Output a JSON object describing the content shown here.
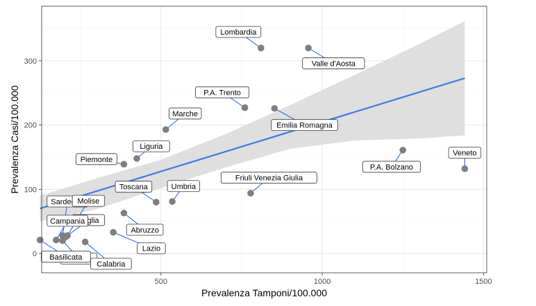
{
  "chart_data": {
    "type": "scatter",
    "xlabel": "Prevalenza Tamponi/100.000",
    "ylabel": "Prevalenza Casi/100.000",
    "xlim": [
      130,
      1510
    ],
    "ylim": [
      -30,
      385
    ],
    "x_ticks": [
      500,
      1000,
      1500
    ],
    "y_ticks": [
      0,
      100,
      200,
      300
    ],
    "x_minor_ticks": [
      250,
      750,
      1250
    ],
    "y_minor_ticks": [
      50,
      150,
      250,
      350
    ],
    "grid": true,
    "colors": {
      "point": "#7f7f7f",
      "fit_line": "#3d7ae8",
      "band": "#d9d9d9",
      "leader": "#2f6fd6",
      "grid_major": "#e6e6e6",
      "grid_minor": "#f2f2f2",
      "axis": "#333333"
    },
    "points": [
      {
        "name": "Lombardia",
        "x": 810,
        "y": 320,
        "lx": 740,
        "ly": 345
      },
      {
        "name": "Valle d'Aosta",
        "x": 957,
        "y": 320,
        "lx": 1035,
        "ly": 296
      },
      {
        "name": "P.A. Trento",
        "x": 760,
        "y": 227,
        "lx": 690,
        "ly": 251
      },
      {
        "name": "Emilia Romagna",
        "x": 852,
        "y": 226,
        "lx": 945,
        "ly": 200
      },
      {
        "name": "Marche",
        "x": 515,
        "y": 193,
        "lx": 575,
        "ly": 218
      },
      {
        "name": "Liguria",
        "x": 425,
        "y": 148,
        "lx": 470,
        "ly": 167
      },
      {
        "name": "Piemonte",
        "x": 385,
        "y": 139,
        "lx": 300,
        "ly": 147
      },
      {
        "name": "P.A. Bolzano",
        "x": 1250,
        "y": 161,
        "lx": 1215,
        "ly": 135
      },
      {
        "name": "Veneto",
        "x": 1442,
        "y": 132,
        "lx": 1442,
        "ly": 157
      },
      {
        "name": "Friuli Venezia Giulia",
        "x": 778,
        "y": 94,
        "lx": 835,
        "ly": 118
      },
      {
        "name": "Toscana",
        "x": 485,
        "y": 80,
        "lx": 415,
        "ly": 104
      },
      {
        "name": "Umbria",
        "x": 535,
        "y": 81,
        "lx": 570,
        "ly": 105
      },
      {
        "name": "Abruzzo",
        "x": 385,
        "y": 63,
        "lx": 450,
        "ly": 37
      },
      {
        "name": "Lazio",
        "x": 352,
        "y": 33,
        "lx": 470,
        "ly": 8
      },
      {
        "name": "Sardegna",
        "x": 195,
        "y": 28,
        "lx": 210,
        "ly": 81
      },
      {
        "name": "Molise",
        "x": 210,
        "y": 28,
        "lx": 275,
        "ly": 82
      },
      {
        "name": "Puglia",
        "x": 205,
        "y": 26,
        "lx": 275,
        "ly": 52
      },
      {
        "name": "Campania",
        "x": 175,
        "y": 21,
        "lx": 210,
        "ly": 51
      },
      {
        "name": "Sicilia",
        "x": 195,
        "y": 20,
        "lx": 245,
        "ly": -8
      },
      {
        "name": "Calabria",
        "x": 265,
        "y": 18,
        "lx": 345,
        "ly": -16
      },
      {
        "name": "Basilicata",
        "x": 125,
        "y": 21,
        "lx": 205,
        "ly": -5
      }
    ],
    "fit_line": {
      "x": [
        125,
        1442
      ],
      "y": [
        70,
        273
      ]
    },
    "confidence_band": {
      "x": [
        125,
        300,
        500,
        700,
        900,
        1100,
        1300,
        1442
      ],
      "upper": [
        90,
        117,
        146,
        186,
        231,
        278,
        326,
        362
      ],
      "lower": [
        50,
        69,
        102,
        134,
        163,
        176,
        179,
        184
      ]
    }
  }
}
